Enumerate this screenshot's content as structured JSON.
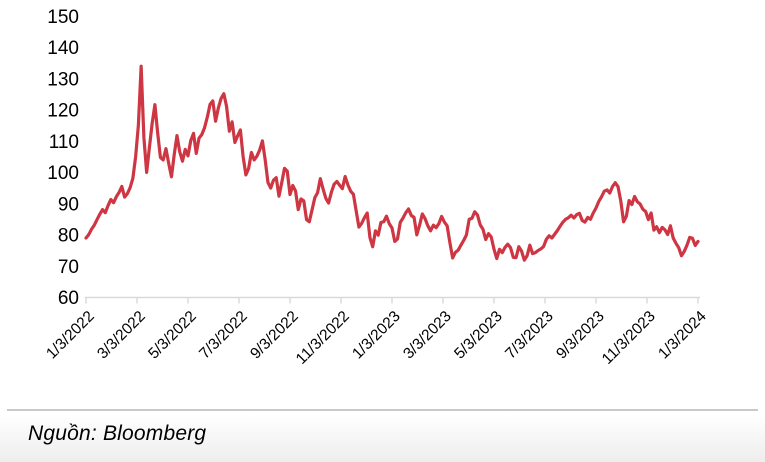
{
  "figure": {
    "source_caption": "Nguồn: Bloomberg"
  },
  "colors": {
    "line": "#CD3642",
    "axis": "#D9D9D9",
    "label_text": "#000000",
    "separator": "#C9C9C9"
  },
  "chart_data": {
    "type": "line",
    "title": "",
    "xlabel": "",
    "ylabel": "",
    "ylim": [
      60,
      150
    ],
    "y_ticks": [
      150,
      140,
      130,
      120,
      110,
      100,
      90,
      80,
      70,
      60
    ],
    "x_tick_labels": [
      "1/3/2022",
      "3/3/2022",
      "5/3/2022",
      "7/3/2022",
      "9/3/2022",
      "11/3/2022",
      "1/3/2023",
      "3/3/2023",
      "5/3/2023",
      "7/3/2023",
      "9/3/2023",
      "11/3/2023",
      "1/3/2024"
    ],
    "grid": false,
    "legend": "none",
    "series": [
      {
        "values": [
          78.9,
          80.0,
          81.7,
          83.0,
          84.8,
          86.5,
          88.0,
          87.0,
          89.3,
          91.2,
          90.2,
          92.1,
          93.5,
          95.4,
          92.0,
          93.1,
          95.0,
          98.0,
          104.9,
          115.0,
          133.9,
          111.1,
          99.9,
          107.9,
          115.6,
          121.6,
          112.5,
          104.7,
          103.9,
          107.5,
          102.8,
          98.5,
          105.6,
          111.7,
          106.5,
          103.5,
          107.3,
          105.2,
          110.1,
          112.4,
          106.0,
          110.9,
          112.0,
          114.2,
          117.6,
          121.7,
          122.8,
          116.3,
          120.5,
          123.6,
          125.1,
          121.0,
          113.1,
          116.1,
          109.5,
          111.6,
          113.5,
          104.9,
          99.1,
          101.2,
          106.3,
          103.9,
          105.1,
          107.1,
          110.0,
          103.9,
          96.7,
          94.9,
          97.4,
          98.2,
          92.3,
          96.6,
          101.2,
          100.3,
          92.8,
          95.7,
          94.0,
          88.0,
          91.4,
          90.8,
          84.8,
          84.1,
          87.9,
          91.8,
          93.4,
          97.9,
          94.6,
          91.6,
          90.1,
          93.5,
          96.1,
          97.0,
          95.8,
          94.7,
          98.6,
          95.9,
          93.9,
          92.9,
          87.6,
          82.4,
          83.6,
          85.4,
          86.9,
          79.0,
          76.1,
          81.2,
          79.8,
          83.9,
          84.1,
          85.9,
          83.5,
          82.1,
          77.8,
          78.6,
          83.9,
          85.3,
          87.0,
          88.2,
          86.1,
          85.5,
          79.9,
          83.0,
          86.6,
          85.1,
          82.8,
          81.2,
          83.0,
          82.2,
          83.5,
          85.8,
          84.0,
          82.8,
          77.4,
          72.5,
          74.3,
          75.0,
          76.6,
          78.1,
          79.9,
          84.9,
          85.2,
          87.3,
          86.3,
          83.1,
          81.7,
          78.4,
          80.3,
          79.2,
          75.3,
          72.3,
          75.3,
          74.2,
          75.9,
          76.9,
          75.8,
          72.7,
          72.6,
          76.1,
          74.7,
          71.8,
          73.2,
          76.6,
          73.9,
          74.2,
          74.9,
          75.4,
          76.2,
          78.5,
          79.6,
          78.9,
          80.1,
          81.3,
          82.7,
          84.0,
          84.9,
          85.4,
          86.2,
          85.3,
          86.4,
          86.8,
          84.5,
          84.0,
          85.5,
          84.9,
          86.9,
          88.5,
          90.6,
          92.1,
          93.9,
          94.3,
          93.3,
          95.4,
          96.6,
          95.3,
          90.7,
          84.1,
          85.8,
          90.9,
          89.6,
          92.2,
          90.5,
          89.8,
          88.1,
          87.4,
          84.8,
          86.9,
          81.4,
          82.5,
          80.6,
          82.3,
          81.5,
          80.0,
          82.8,
          78.9,
          77.2,
          75.8,
          73.2,
          74.6,
          76.6,
          79.1,
          78.8,
          76.5,
          77.8
        ]
      }
    ]
  }
}
